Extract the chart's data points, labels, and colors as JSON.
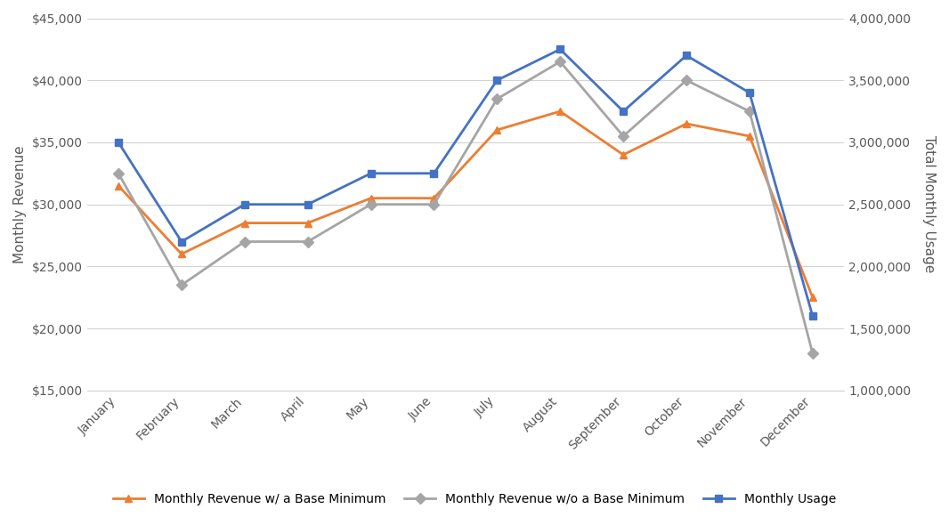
{
  "months": [
    "January",
    "February",
    "March",
    "April",
    "May",
    "June",
    "July",
    "August",
    "September",
    "October",
    "November",
    "December"
  ],
  "revenue_with_base": [
    31500,
    26000,
    28500,
    28500,
    30500,
    30500,
    36000,
    37500,
    34000,
    36500,
    35500,
    22500
  ],
  "revenue_without_base": [
    32500,
    23500,
    27000,
    27000,
    30000,
    30000,
    38500,
    41500,
    35500,
    40000,
    37500,
    18000
  ],
  "monthly_usage": [
    3000000,
    2200000,
    2500000,
    2500000,
    2750000,
    2750000,
    3500000,
    3750000,
    3250000,
    3700000,
    3400000,
    1600000
  ],
  "color_with_base": "#ED7D31",
  "color_without_base": "#A5A5A5",
  "color_usage": "#4472C4",
  "tick_label_color": "#595959",
  "ylabel_left": "Monthly Revenue",
  "ylabel_right": "Total Monthly Usage",
  "ylim_left": [
    15000,
    45000
  ],
  "ylim_right": [
    1000000,
    4000000
  ],
  "yticks_left": [
    15000,
    20000,
    25000,
    30000,
    35000,
    40000,
    45000
  ],
  "yticks_right": [
    1000000,
    1500000,
    2000000,
    2500000,
    3000000,
    3500000,
    4000000
  ],
  "legend_labels": [
    "Monthly Revenue w/ a Base Minimum",
    "Monthly Revenue w/o a Base Minimum",
    "Monthly Usage"
  ],
  "background_color": "#FFFFFF",
  "grid_color": "#D3D3D3",
  "axis_label_fontsize": 11,
  "tick_fontsize": 10
}
